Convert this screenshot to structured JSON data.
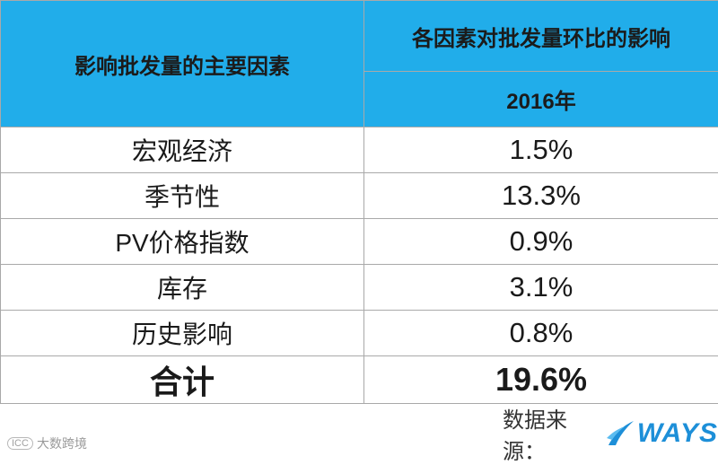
{
  "table": {
    "header": {
      "factor_label": "影响批发量的主要因素",
      "impact_label": "各因素对批发量环比的影响",
      "year_label": "2016年"
    },
    "rows": [
      {
        "factor": "宏观经济",
        "value": "1.5%"
      },
      {
        "factor": "季节性",
        "value": "13.3%"
      },
      {
        "factor": "PV价格指数",
        "value": "0.9%"
      },
      {
        "factor": "库存",
        "value": "3.1%"
      },
      {
        "factor": "历史影响",
        "value": "0.8%"
      }
    ],
    "total": {
      "label": "合计",
      "value": "19.6%"
    }
  },
  "footer": {
    "source_label": "数据来源：",
    "logo_text": "WAYS",
    "watermark_text": "大数跨境",
    "watermark_badge": "ICC"
  },
  "colors": {
    "header_bg": "#21adea",
    "border": "#a9a9a9",
    "logo": "#1d8fd8"
  }
}
